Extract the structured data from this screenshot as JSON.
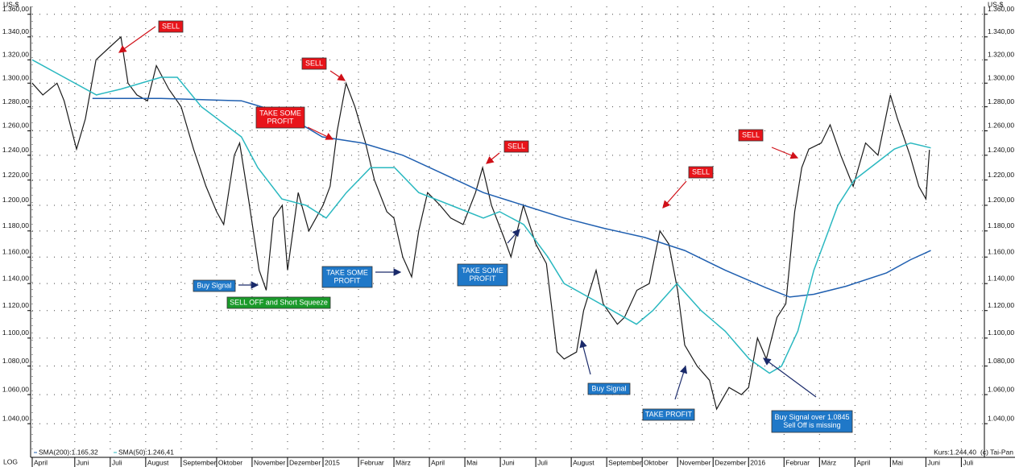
{
  "chart_data": {
    "type": "line",
    "log_scale": true,
    "grid": true,
    "y_unit": "US-$",
    "scale_label": "LOG",
    "copyright": "(c) Tai-Pan",
    "ylim": [
      1020,
      1367
    ],
    "yticks": [
      {
        "value": 1040,
        "label": "1.040,00"
      },
      {
        "value": 1060,
        "label": "1.060,00"
      },
      {
        "value": 1080,
        "label": "1.080,00"
      },
      {
        "value": 1100,
        "label": "1.100,00"
      },
      {
        "value": 1120,
        "label": "1.120,00"
      },
      {
        "value": 1140,
        "label": "1.140,00"
      },
      {
        "value": 1160,
        "label": "1.160,00"
      },
      {
        "value": 1180,
        "label": "1.180,00"
      },
      {
        "value": 1200,
        "label": "1.200,00"
      },
      {
        "value": 1220,
        "label": "1.220,00"
      },
      {
        "value": 1240,
        "label": "1.240,00"
      },
      {
        "value": 1260,
        "label": "1.260,00"
      },
      {
        "value": 1280,
        "label": "1.280,00"
      },
      {
        "value": 1300,
        "label": "1.300,00"
      },
      {
        "value": 1320,
        "label": "1.320,00"
      },
      {
        "value": 1340,
        "label": "1.340,00"
      },
      {
        "value": 1360,
        "label": "1.360,00"
      }
    ],
    "xlim": [
      3.8,
      30.65
    ],
    "xticks": [
      {
        "value": 3.8,
        "label": "April"
      },
      {
        "value": 5,
        "label": "Juni"
      },
      {
        "value": 6,
        "label": "Juli"
      },
      {
        "value": 7,
        "label": "August"
      },
      {
        "value": 8,
        "label": "September"
      },
      {
        "value": 9,
        "label": "Oktober"
      },
      {
        "value": 10,
        "label": "November"
      },
      {
        "value": 11,
        "label": "Dezember"
      },
      {
        "value": 12,
        "label": "2015"
      },
      {
        "value": 13,
        "label": "Februar"
      },
      {
        "value": 14,
        "label": "März"
      },
      {
        "value": 15,
        "label": "April"
      },
      {
        "value": 16,
        "label": "Mai"
      },
      {
        "value": 17,
        "label": "Juni"
      },
      {
        "value": 18,
        "label": "Juli"
      },
      {
        "value": 19,
        "label": "August"
      },
      {
        "value": 20,
        "label": "September"
      },
      {
        "value": 21,
        "label": "Oktober"
      },
      {
        "value": 22,
        "label": "November"
      },
      {
        "value": 23,
        "label": "Dezember"
      },
      {
        "value": 24,
        "label": "2016"
      },
      {
        "value": 25,
        "label": "Februar"
      },
      {
        "value": 26,
        "label": "März"
      },
      {
        "value": 27,
        "label": "April"
      },
      {
        "value": 28,
        "label": "Mai"
      },
      {
        "value": 29,
        "label": "Juni"
      },
      {
        "value": 30,
        "label": "Juli"
      }
    ],
    "series": [
      {
        "name": "Kurs:1.244,40",
        "color": "#1a1a1a",
        "x": [
          3.8,
          4.1,
          4.5,
          4.7,
          5.05,
          5.3,
          5.6,
          5.95,
          6.3,
          6.5,
          6.75,
          7.05,
          7.3,
          7.65,
          8.0,
          8.35,
          8.7,
          9.0,
          9.2,
          9.5,
          9.65,
          9.9,
          10.2,
          10.4,
          10.6,
          10.85,
          11.0,
          11.3,
          11.6,
          12.0,
          12.2,
          12.4,
          12.65,
          12.9,
          13.2,
          13.45,
          13.8,
          14.0,
          14.25,
          14.5,
          14.7,
          14.95,
          15.3,
          15.6,
          15.95,
          16.3,
          16.5,
          16.75,
          17.1,
          17.3,
          17.65,
          18.0,
          18.3,
          18.6,
          18.8,
          19.15,
          19.35,
          19.7,
          19.9,
          20.3,
          20.5,
          20.85,
          21.2,
          21.5,
          21.75,
          22.0,
          22.2,
          22.55,
          22.9,
          23.1,
          23.45,
          23.8,
          24.0,
          24.25,
          24.5,
          24.8,
          25.05,
          25.3,
          25.5,
          25.7,
          26.05,
          26.3,
          26.6,
          26.95,
          27.3,
          27.65,
          28.0,
          28.2,
          28.55,
          28.8,
          29.0,
          29.1
        ],
        "values": [
          1300,
          1290,
          1300,
          1285,
          1245,
          1270,
          1320,
          1330,
          1340,
          1300,
          1290,
          1285,
          1315,
          1295,
          1280,
          1245,
          1215,
          1195,
          1185,
          1240,
          1250,
          1205,
          1150,
          1135,
          1190,
          1200,
          1150,
          1210,
          1180,
          1200,
          1215,
          1260,
          1300,
          1280,
          1250,
          1220,
          1195,
          1190,
          1160,
          1145,
          1180,
          1210,
          1200,
          1190,
          1185,
          1210,
          1230,
          1200,
          1175,
          1160,
          1200,
          1170,
          1155,
          1090,
          1085,
          1090,
          1120,
          1150,
          1125,
          1110,
          1115,
          1135,
          1140,
          1180,
          1170,
          1135,
          1095,
          1080,
          1070,
          1050,
          1065,
          1060,
          1065,
          1100,
          1085,
          1115,
          1125,
          1195,
          1230,
          1245,
          1250,
          1265,
          1240,
          1215,
          1250,
          1240,
          1290,
          1270,
          1240,
          1215,
          1205,
          1244.4
        ]
      },
      {
        "name": "SMA(200):1.165,32",
        "color": "#1f5fb0",
        "x": [
          5.5,
          7.43,
          9.7,
          10.84,
          11.98,
          13.11,
          14.25,
          15.39,
          16.52,
          17.66,
          18.8,
          19.93,
          21.07,
          22.2,
          23.34,
          24.48,
          25.16,
          25.84,
          26.75,
          27.89,
          28.57,
          29.14
        ],
        "values": [
          1287,
          1287,
          1285,
          1275,
          1255,
          1250,
          1240,
          1225,
          1210,
          1200,
          1190,
          1182,
          1175,
          1165,
          1150,
          1137,
          1130,
          1132,
          1138,
          1148,
          1158,
          1165
        ]
      },
      {
        "name": "SMA(50):1.246,41",
        "color": "#2ab8c0",
        "x": [
          3.8,
          4.7,
          5.61,
          6.3,
          7.43,
          7.89,
          8.57,
          9.7,
          10.16,
          10.84,
          11.52,
          12.09,
          12.66,
          13.34,
          14.02,
          14.7,
          15.61,
          16.52,
          16.98,
          17.66,
          18.34,
          18.8,
          19.48,
          20.16,
          20.84,
          21.3,
          21.98,
          22.66,
          23.34,
          24.02,
          24.59,
          24.93,
          25.39,
          25.84,
          26.52,
          26.98,
          27.66,
          28.11,
          28.57,
          29.14
        ],
        "values": [
          1320,
          1305,
          1290,
          1295,
          1305,
          1305,
          1280,
          1255,
          1230,
          1205,
          1200,
          1190,
          1210,
          1230,
          1230,
          1210,
          1200,
          1190,
          1195,
          1185,
          1160,
          1140,
          1130,
          1120,
          1110,
          1120,
          1140,
          1120,
          1105,
          1085,
          1075,
          1080,
          1105,
          1150,
          1200,
          1220,
          1235,
          1245,
          1250,
          1246
        ]
      }
    ],
    "annotations": [
      {
        "lines": [
          "SELL"
        ],
        "color": "red"
      },
      {
        "lines": [
          "SELL"
        ],
        "color": "red"
      },
      {
        "lines": [
          "TAKE SOME",
          "PROFIT"
        ],
        "color": "red"
      },
      {
        "lines": [
          "SELL"
        ],
        "color": "red"
      },
      {
        "lines": [
          "SELL"
        ],
        "color": "red"
      },
      {
        "lines": [
          "SELL"
        ],
        "color": "red"
      },
      {
        "lines": [
          "Buy Signal"
        ],
        "color": "blue"
      },
      {
        "lines": [
          "SELL OFF and Short Squeeze"
        ],
        "color": "green"
      },
      {
        "lines": [
          "TAKE SOME",
          "PROFIT"
        ],
        "color": "blue"
      },
      {
        "lines": [
          "TAKE SOME",
          "PROFIT"
        ],
        "color": "blue"
      },
      {
        "lines": [
          "Buy Signal"
        ],
        "color": "blue"
      },
      {
        "lines": [
          "TAKE PROFIT"
        ],
        "color": "blue"
      },
      {
        "lines": [
          "Buy Signal over 1.0845",
          "Sell Off is missing"
        ],
        "color": "blue"
      }
    ]
  }
}
